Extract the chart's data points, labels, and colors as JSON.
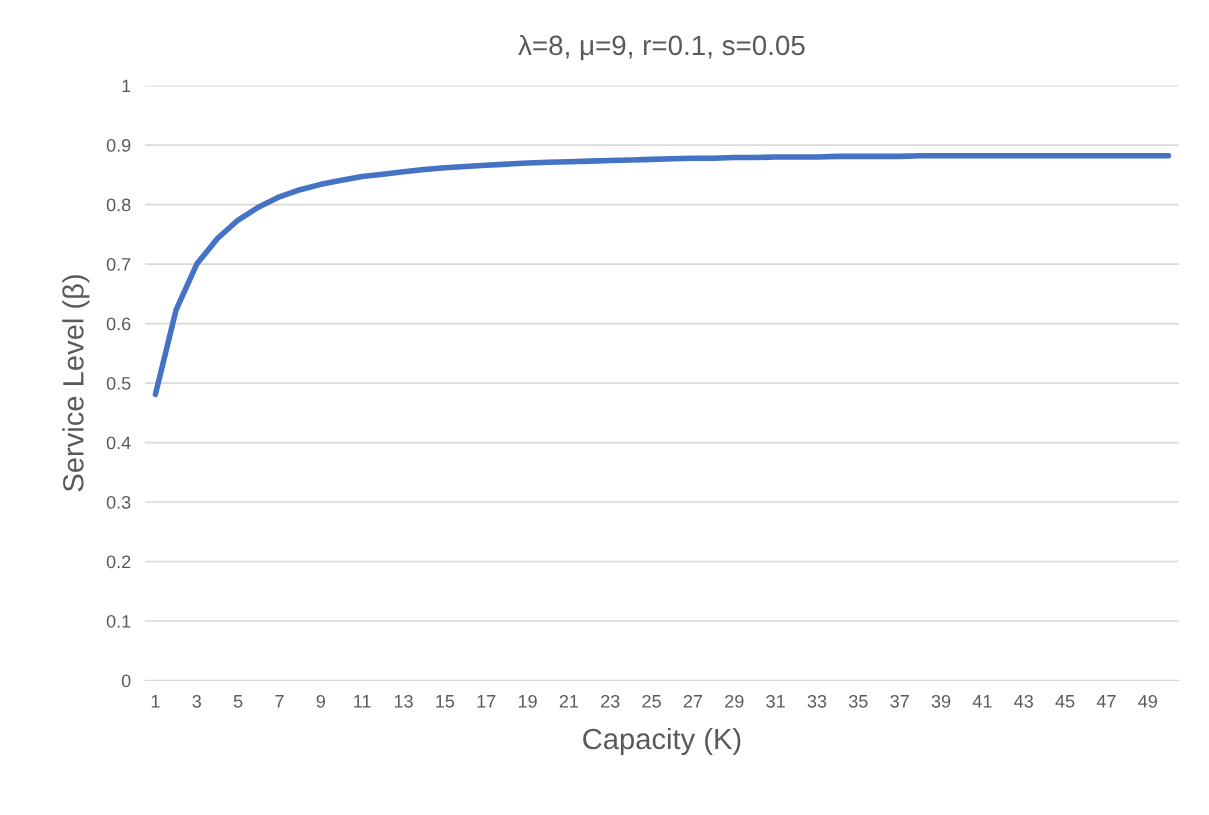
{
  "chart_data": {
    "type": "line",
    "title": "λ=8, μ=9, r=0.1, s=0.05",
    "xlabel": "Capacity (K)",
    "ylabel": "Service Level (β)",
    "categories": [
      "1",
      null,
      "3",
      null,
      "5",
      null,
      "7",
      null,
      "9",
      null,
      "11",
      null,
      "13",
      null,
      "15",
      null,
      "17",
      null,
      "19",
      null,
      "21",
      null,
      "23",
      null,
      "25",
      null,
      "27",
      null,
      "29",
      null,
      "31",
      null,
      "33",
      null,
      "35",
      null,
      "37",
      null,
      "39",
      null,
      "41",
      null,
      "43",
      null,
      "45",
      null,
      "47",
      null,
      "49",
      null
    ],
    "series": [
      {
        "color": "#4472c4",
        "values": [
          0.481,
          0.623,
          0.7,
          0.743,
          0.774,
          0.796,
          0.813,
          0.825,
          0.834,
          0.841,
          0.847,
          0.851,
          0.855,
          0.859,
          0.862,
          0.864,
          0.866,
          0.868,
          0.87,
          0.871,
          0.872,
          0.873,
          0.874,
          0.875,
          0.876,
          0.877,
          0.878,
          0.878,
          0.879,
          0.879,
          0.88,
          0.88,
          0.88,
          0.881,
          0.881,
          0.881,
          0.881,
          0.882,
          0.882,
          0.882,
          0.882,
          0.882,
          0.882,
          0.882,
          0.882,
          0.882,
          0.882,
          0.882,
          0.882,
          0.882
        ]
      }
    ],
    "ylim": [
      0,
      1
    ],
    "yticks": [
      0,
      0.1,
      0.2,
      0.3,
      0.4,
      0.5,
      0.6,
      0.7,
      0.8,
      0.9,
      1
    ],
    "grid": "y",
    "marker": "none",
    "line_style": "solid"
  }
}
